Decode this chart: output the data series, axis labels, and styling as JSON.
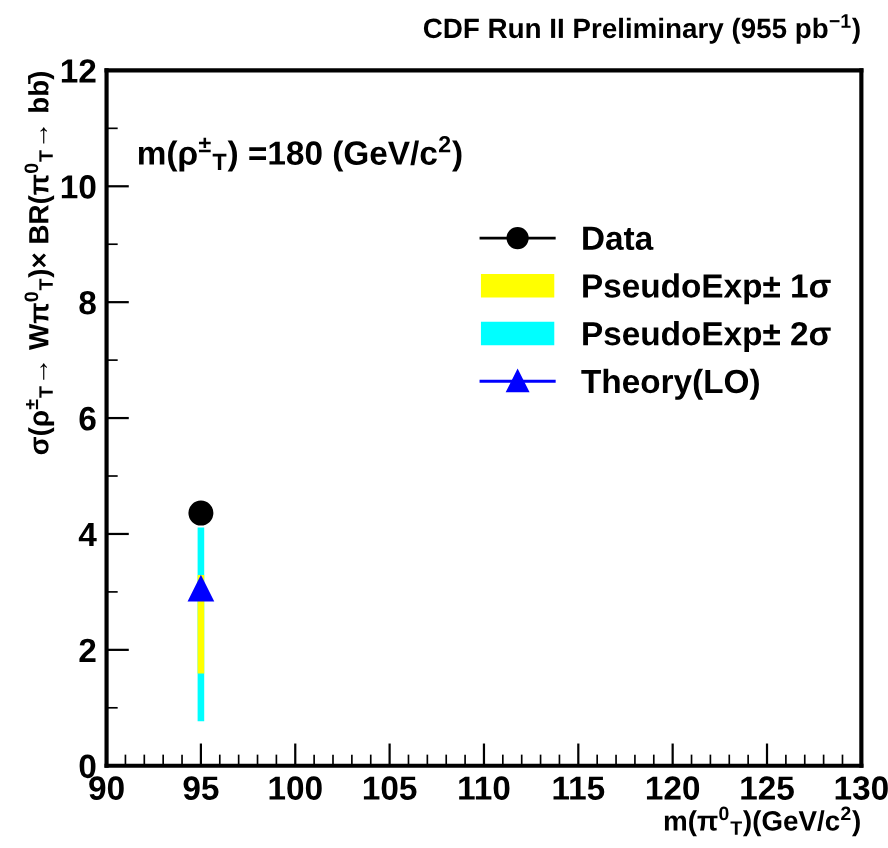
{
  "chart_data": {
    "type": "line",
    "title": "CDF Run II Preliminary (955 pb$^{−1}$)",
    "xlabel": "m(π$^{0}$$_{T}$)(GeV/c$^{2}$)",
    "ylabel": "σ(ρ$^{±}$$_{T}$→ Wπ$^{0}$$_{T}$)× BR(π$^{0}$$_{T}$→ bb̄)",
    "annotations": [
      "m(ρ$^{±}$$_{T}$) =180 (GeV/c$^{2}$)"
    ],
    "x": [
      95
    ],
    "series": [
      {
        "name": "Data",
        "color": "#000000",
        "marker": "circle",
        "values": [
          4.36
        ]
      },
      {
        "name": "PseudoExp± 1σ",
        "type": "bar",
        "color": "#ffff00",
        "base": [
          1.59
        ],
        "values": [
          1.7
        ]
      },
      {
        "name": "PseudoExp± 2σ",
        "type": "bar",
        "color": "#00ffff",
        "base": [
          0.77
        ],
        "values": [
          3.34
        ]
      },
      {
        "name": "Theory(LO)",
        "color": "#0000ff",
        "marker": "triangle",
        "values": [
          3.05
        ]
      }
    ],
    "xlim": [
      90,
      130
    ],
    "xticks": [
      90,
      95,
      100,
      105,
      110,
      115,
      120,
      125,
      130
    ],
    "ylim": [
      0,
      12
    ],
    "yticks": [
      0,
      2,
      4,
      6,
      8,
      10,
      12
    ],
    "grid": false,
    "legend": "top right"
  }
}
